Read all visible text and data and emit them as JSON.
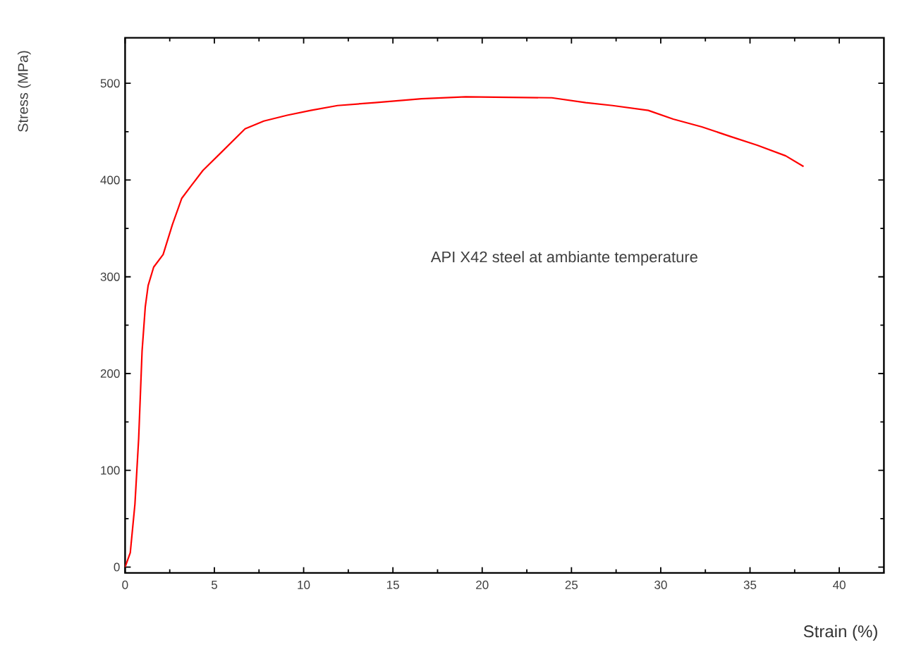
{
  "chart_data": {
    "type": "line",
    "xlabel": "Strain  (%)",
    "ylabel": "Stress (MPa)",
    "annotations": [
      "API X42 steel at ambiante temperature"
    ],
    "xlim": [
      0,
      42.5
    ],
    "ylim": [
      -6,
      547
    ],
    "xticks": [
      0,
      5,
      10,
      15,
      20,
      25,
      30,
      35,
      40
    ],
    "yticks": [
      0,
      100,
      200,
      300,
      400,
      500
    ],
    "grid": false,
    "marker": "none",
    "line_style": "solid",
    "series": [
      {
        "color": "#ff0000",
        "x": [
          0,
          0.29,
          0.55,
          0.76,
          0.95,
          1.13,
          1.29,
          1.6,
          2.13,
          2.65,
          3.17,
          3.7,
          4.36,
          5.41,
          6.72,
          7.77,
          9.08,
          10.4,
          11.9,
          14.0,
          16.6,
          19.07,
          23.9,
          25.8,
          27.3,
          29.3,
          30.7,
          32.3,
          33.9,
          35.4,
          37.0,
          38.0
        ],
        "values": [
          0,
          15,
          65,
          133,
          223,
          269,
          291,
          310,
          323,
          354,
          381,
          394,
          410,
          429,
          453,
          461,
          467,
          472,
          477,
          480,
          484,
          486,
          485,
          480,
          477,
          472,
          463,
          455,
          445,
          436,
          425,
          414
        ]
      }
    ]
  }
}
